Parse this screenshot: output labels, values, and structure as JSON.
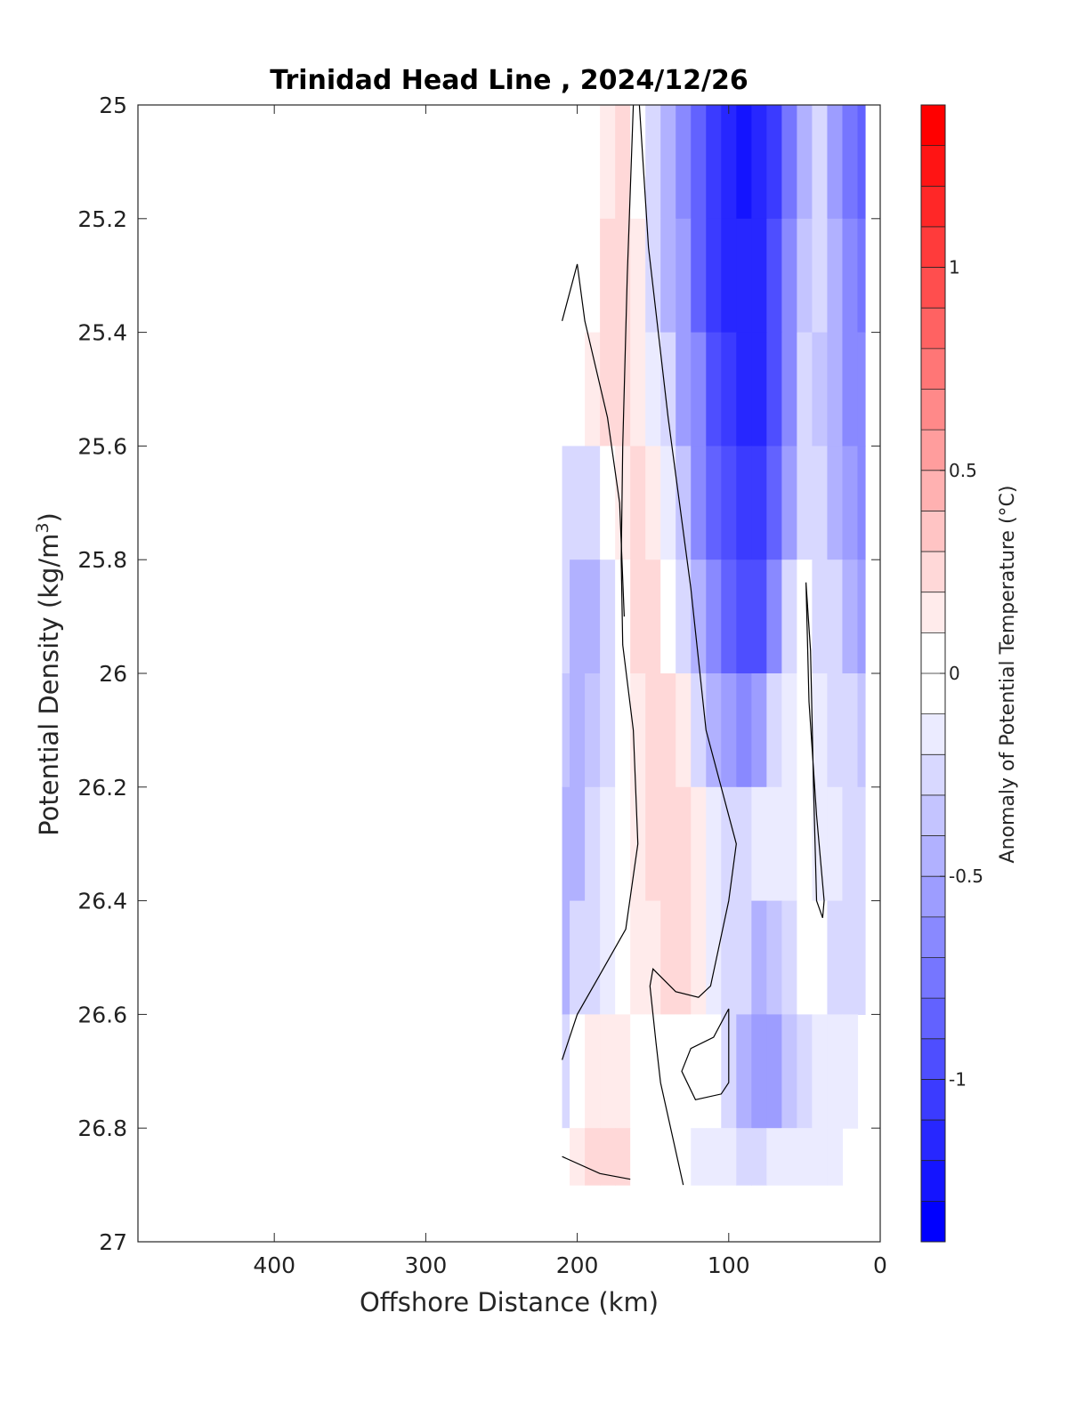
{
  "chart_data": {
    "type": "contour",
    "title": "Trinidad Head Line , 2024/12/26",
    "xlabel": "Offshore Distance (km)",
    "ylabel_main": "Potential Density (kg/m",
    "ylabel_sup": "3",
    "ylabel_tail": ")",
    "xlim": [
      490,
      0
    ],
    "x_reversed": true,
    "ylim": [
      25,
      27
    ],
    "y_reversed": true,
    "xticks": [
      400,
      300,
      200,
      100,
      0
    ],
    "yticks": [
      25,
      25.2,
      25.4,
      25.6,
      25.8,
      26,
      26.2,
      26.4,
      26.6,
      26.8,
      27
    ],
    "ytick_labels": [
      "25",
      "25.2",
      "25.4",
      "25.6",
      "25.8",
      "26",
      "26.2",
      "26.4",
      "26.6",
      "26.8",
      "27"
    ],
    "grid": false,
    "colorbar": {
      "label": "Anomaly of Potential Temperature (°C)",
      "range": [
        -1.4,
        1.4
      ],
      "step": 0.1,
      "ticks": [
        -1,
        -0.5,
        0,
        0.5,
        1
      ],
      "tick_labels": [
        "-1",
        "-0.5",
        "0",
        "0.5",
        "1"
      ],
      "colormap": "blue-white-red",
      "neg_color": "#0000ff",
      "pos_color": "#ff0000"
    },
    "data_extent": {
      "x": [
        10,
        210
      ],
      "y": [
        25,
        26.9
      ]
    },
    "stations_km": [
      210,
      200,
      190,
      180,
      170,
      160,
      150,
      140,
      130,
      120,
      110,
      100,
      90,
      80,
      70,
      60,
      50,
      40,
      30,
      20,
      10
    ],
    "density_levels": [
      25.0,
      25.2,
      25.4,
      25.6,
      25.8,
      26.0,
      26.2,
      26.4,
      26.6,
      26.8
    ]
  }
}
